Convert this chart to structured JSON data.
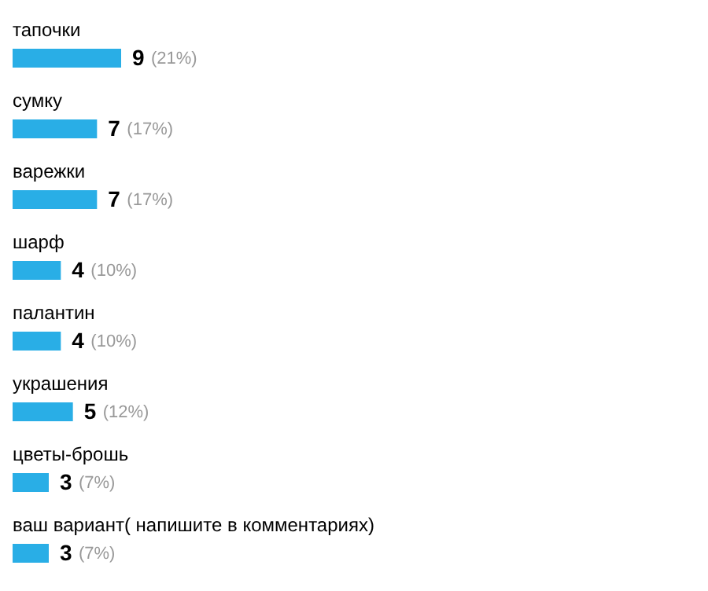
{
  "chart_data": {
    "type": "bar",
    "orientation": "horizontal",
    "categories": [
      "тапочки",
      "сумку",
      "варежки",
      "шарф",
      "палантин",
      "украшения",
      "цветы-брошь",
      "ваш вариант( напишите в комментариях)"
    ],
    "values": [
      9,
      7,
      7,
      4,
      4,
      5,
      3,
      3
    ],
    "data_labels": true,
    "annotations": [
      {
        "text": "(21%)",
        "x": 9,
        "y": "тапочки"
      },
      {
        "text": "(17%)",
        "x": 7,
        "y": "сумку"
      },
      {
        "text": "(17%)",
        "x": 7,
        "y": "варежки"
      },
      {
        "text": "(10%)",
        "x": 4,
        "y": "шарф"
      },
      {
        "text": "(10%)",
        "x": 4,
        "y": "палантин"
      },
      {
        "text": "(12%)",
        "x": 5,
        "y": "украшения"
      },
      {
        "text": "(7%)",
        "x": 3,
        "y": "цветы-брошь"
      },
      {
        "text": "(7%)",
        "x": 3,
        "y": "ваш вариант( напишите в комментариях)"
      }
    ],
    "color": "#29aee6"
  }
}
